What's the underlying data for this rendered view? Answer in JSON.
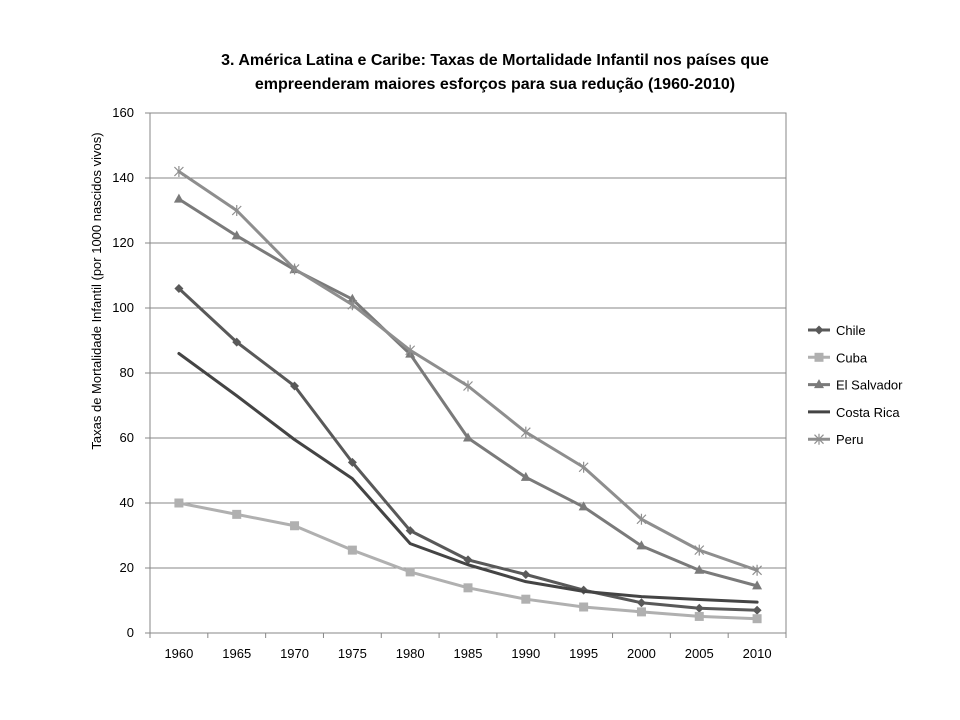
{
  "chart_data": {
    "type": "line",
    "title": [
      "3. América Latina e Caribe: Taxas de Mortalidade Infantil nos países que",
      "empreenderam maiores esforços para sua redução (1960-2010)"
    ],
    "xlabel": "",
    "ylabel": "Taxas de Mortalidade Infantil (por 1000 nascidos vivos)",
    "categories": [
      "1960",
      "1965",
      "1970",
      "1975",
      "1980",
      "1985",
      "1990",
      "1995",
      "2000",
      "2005",
      "2010"
    ],
    "ylim": [
      0,
      160
    ],
    "yticks": [
      0,
      20,
      40,
      60,
      80,
      100,
      120,
      140,
      160
    ],
    "grid": "horizontal",
    "legend_position": "right",
    "series": [
      {
        "name": "Chile",
        "color": "#595959",
        "marker": "diamond",
        "values": [
          106,
          89.5,
          76,
          52.5,
          31.5,
          22.5,
          18,
          13.2,
          9.3,
          7.6,
          7
        ]
      },
      {
        "name": "Cuba",
        "color": "#b0b0b0",
        "marker": "square",
        "values": [
          40,
          36.5,
          33,
          25.5,
          18.8,
          13.9,
          10.4,
          8,
          6.5,
          5.1,
          4.4
        ]
      },
      {
        "name": "El Salvador",
        "color": "#7a7a7a",
        "marker": "triangle",
        "values": [
          133.5,
          122.2,
          111.8,
          102.7,
          85.8,
          60,
          47.9,
          38.8,
          26.8,
          19.3,
          14.5
        ]
      },
      {
        "name": "Costa Rica",
        "color": "#444444",
        "marker": "none",
        "values": [
          86,
          73,
          59.5,
          47.5,
          27.5,
          21,
          15.8,
          12.8,
          11.2,
          10.3,
          9.5
        ]
      },
      {
        "name": "Peru",
        "color": "#8e8e8e",
        "marker": "star",
        "values": [
          142,
          130,
          112,
          101,
          87,
          76,
          61.8,
          51,
          35,
          25.5,
          19.3
        ]
      }
    ]
  }
}
